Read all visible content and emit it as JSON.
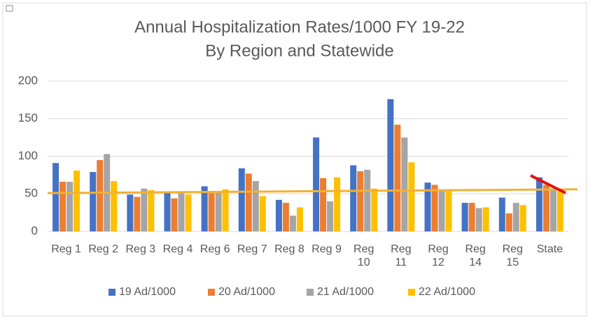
{
  "chart_data": {
    "type": "bar",
    "title": "Annual Hospitalization Rates/1000 FY 19-22",
    "subtitle": "By Region and Statewide",
    "categories": [
      "Reg 1",
      "Reg 2",
      "Reg 3",
      "Reg 4",
      "Reg 6",
      "Reg 7",
      "Reg 8",
      "Reg 9",
      "Reg 10",
      "Reg 11",
      "Reg 12",
      "Reg 14",
      "Reg 15",
      "State"
    ],
    "series": [
      {
        "name": "19 Ad/1000",
        "color": "#4472c4",
        "values": [
          91,
          79,
          49,
          51,
          60,
          84,
          42,
          125,
          88,
          176,
          65,
          38,
          45,
          72
        ]
      },
      {
        "name": "20 Ad/1000",
        "color": "#ed7d31",
        "values": [
          66,
          95,
          46,
          44,
          51,
          77,
          38,
          71,
          80,
          142,
          62,
          38,
          24,
          62
        ]
      },
      {
        "name": "21 Ad/1000",
        "color": "#a5a5a5",
        "values": [
          66,
          103,
          57,
          51,
          53,
          67,
          21,
          40,
          82,
          125,
          55,
          31,
          38,
          57
        ]
      },
      {
        "name": "22 Ad/1000",
        "color": "#ffc000",
        "values": [
          81,
          67,
          55,
          49,
          56,
          47,
          32,
          72,
          57,
          92,
          55,
          32,
          35,
          55
        ]
      }
    ],
    "trendline": {
      "values": [
        51,
        56
      ],
      "color": "#f2b134"
    },
    "ylim": [
      0,
      200
    ],
    "yticks": [
      0,
      50,
      100,
      150,
      200
    ],
    "grid": true,
    "legend": "bottom"
  }
}
